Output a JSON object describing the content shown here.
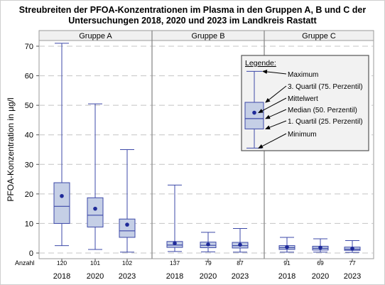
{
  "title_line1": "Streubreiten der PFOA-Konzentrationen im Plasma in den Gruppen A, B und C der",
  "title_line2": "Untersuchungen 2018, 2020 und 2023 im Landkreis Rastatt",
  "colors": {
    "box_fill": "#c5cfe6",
    "box_stroke": "#3d49a8",
    "mean_dot": "#1f2a99",
    "panel_header_bg": "#f0f0f0",
    "grid": "#c4c4c4",
    "legend_bg": "#f2f2f2"
  },
  "chart_data": {
    "type": "boxplot",
    "ylabel": "PFOA-Konzentration in µg/l",
    "ylim": [
      0,
      73
    ],
    "yticks": [
      0,
      10,
      20,
      30,
      40,
      50,
      60,
      70
    ],
    "grid": "horizontal dashed",
    "count_label": "Anzahl",
    "panels": [
      {
        "name": "Gruppe A",
        "boxes": [
          {
            "year": "2018",
            "min": 2.5,
            "q1": 10.0,
            "median": 15.8,
            "q3": 23.8,
            "max": 71.0,
            "mean": 19.3,
            "n": "120"
          },
          {
            "year": "2020",
            "min": 1.2,
            "q1": 8.8,
            "median": 12.8,
            "q3": 18.7,
            "max": 50.5,
            "mean": 15.0,
            "n": "101"
          },
          {
            "year": "2023",
            "min": 0.3,
            "q1": 5.3,
            "median": 7.5,
            "q3": 11.5,
            "max": 35.0,
            "mean": 9.6,
            "n": "102"
          }
        ]
      },
      {
        "name": "Gruppe B",
        "boxes": [
          {
            "year": "2018",
            "min": 0.5,
            "q1": 1.9,
            "median": 2.7,
            "q3": 3.9,
            "max": 23.0,
            "mean": 3.3,
            "n": "137"
          },
          {
            "year": "2020",
            "min": 0.4,
            "q1": 1.8,
            "median": 2.6,
            "q3": 3.7,
            "max": 7.0,
            "mean": 2.9,
            "n": "79"
          },
          {
            "year": "2023",
            "min": 0.3,
            "q1": 1.7,
            "median": 2.5,
            "q3": 3.6,
            "max": 8.3,
            "mean": 2.8,
            "n": "87"
          }
        ]
      },
      {
        "name": "Gruppe C",
        "boxes": [
          {
            "year": "2018",
            "min": 0.3,
            "q1": 1.2,
            "median": 1.8,
            "q3": 2.5,
            "max": 5.3,
            "mean": 2.0,
            "n": "91"
          },
          {
            "year": "2020",
            "min": 0.3,
            "q1": 1.0,
            "median": 1.6,
            "q3": 2.3,
            "max": 4.8,
            "mean": 1.8,
            "n": "69"
          },
          {
            "year": "2023",
            "min": 0.2,
            "q1": 0.9,
            "median": 1.3,
            "q3": 2.0,
            "max": 4.2,
            "mean": 1.5,
            "n": "77"
          }
        ]
      }
    ],
    "legend": {
      "title": "Legende:",
      "placement": "top-right",
      "example": {
        "min": 35.5,
        "q1": 42.0,
        "median": 45.5,
        "q3": 51.0,
        "max": 61.5,
        "mean": 47.5
      },
      "items": [
        {
          "key": "max",
          "label": "Maximum"
        },
        {
          "key": "q3",
          "label": "3. Quartil (75. Perzentil)"
        },
        {
          "key": "mean",
          "label": "Mittelwert"
        },
        {
          "key": "median",
          "label": "Median (50. Perzentil)"
        },
        {
          "key": "q1",
          "label": "1. Quartil (25. Perzentil)"
        },
        {
          "key": "min",
          "label": "Minimum"
        }
      ]
    }
  }
}
